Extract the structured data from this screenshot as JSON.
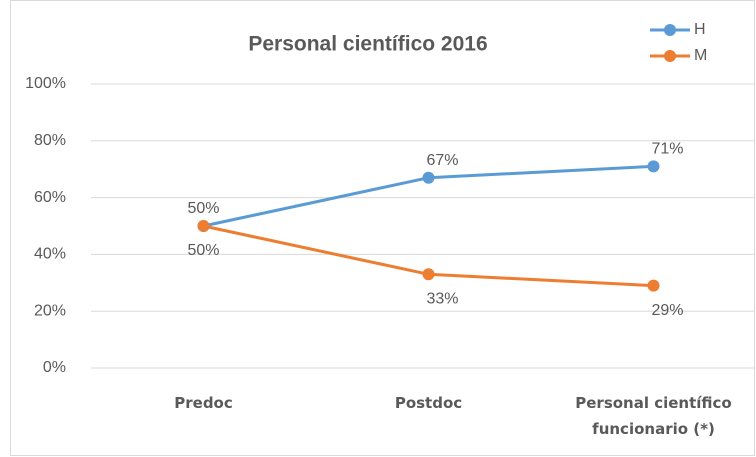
{
  "chart_data": {
    "type": "line",
    "title": "Personal científico 2016",
    "categories": [
      "Predoc",
      "Postdoc",
      "Personal científico funcionario (*)"
    ],
    "series": [
      {
        "name": "H",
        "color": "#5b9bd5",
        "values": [
          50,
          67,
          71
        ],
        "value_labels": [
          "50%",
          "67%",
          "71%"
        ]
      },
      {
        "name": "M",
        "color": "#ed7d31",
        "values": [
          50,
          33,
          29
        ],
        "value_labels": [
          "50%",
          "33%",
          "29%"
        ]
      }
    ],
    "ylim": [
      0,
      100
    ],
    "yticks": [
      {
        "value": 0,
        "label": "0%"
      },
      {
        "value": 20,
        "label": "20%"
      },
      {
        "value": 40,
        "label": "40%"
      },
      {
        "value": 60,
        "label": "60%"
      },
      {
        "value": 80,
        "label": "80%"
      },
      {
        "value": 100,
        "label": "100%"
      }
    ],
    "grid": true,
    "legend": "top-right"
  }
}
